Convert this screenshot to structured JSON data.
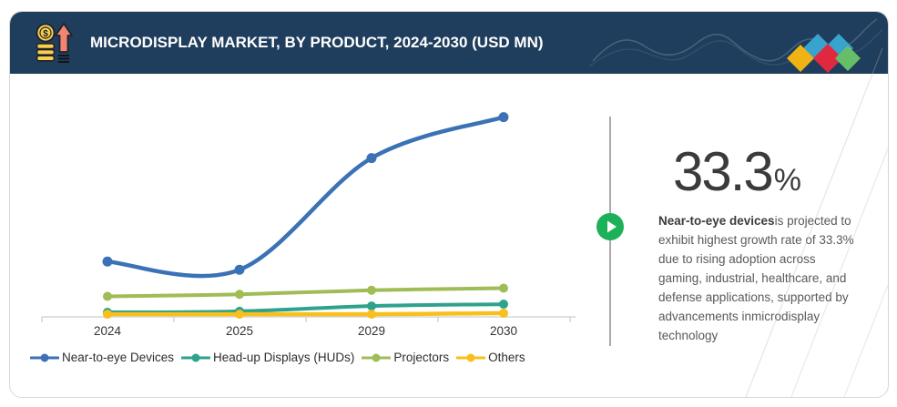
{
  "header": {
    "title": "MICRODISPLAY MARKET, BY PRODUCT, 2024-2030 (USD MN)",
    "background_color": "#1f3d5c",
    "icon_dollar": "$",
    "logo_diamond_colors": [
      "#38a3cc",
      "#38a3cc",
      "#efb313",
      "#e0293f",
      "#66bf68"
    ]
  },
  "chart_data": {
    "type": "line",
    "title": "MICRODISPLAY MARKET, BY PRODUCT, 2024-2030 (USD MN)",
    "categories": [
      "2024",
      "2025",
      "2029",
      "2030"
    ],
    "series": [
      {
        "name": "Near-to-eye Devices",
        "color": "#3a72b5",
        "values": [
          27,
          23,
          77.5,
          97.5
        ]
      },
      {
        "name": "Head-up Displays (HUDs)",
        "color": "#2fa28c",
        "values": [
          2.2,
          2.7,
          5.3,
          6.2
        ]
      },
      {
        "name": "Projectors",
        "color": "#9fbc55",
        "values": [
          10,
          11,
          13,
          14
        ]
      },
      {
        "name": "Others",
        "color": "#f8bf1d",
        "values": [
          1.3,
          1.3,
          1.3,
          1.8
        ]
      }
    ],
    "xlabel": "",
    "ylabel": "",
    "y_axis": {
      "visible": false,
      "note": "no y-axis scale shown; values estimated relative 0-100 from pixel positions",
      "range_used": [
        0,
        100
      ]
    },
    "grid": false,
    "legend_position": "bottom",
    "line_style": "smooth with point markers"
  },
  "highlight": {
    "value": "33.3",
    "percent_sign": "%",
    "bold_text": "Near-to-eye devices",
    "body_text": "is projected to exhibit highest growth rate of 33.3% due to rising adoption across gaming, industrial, healthcare, and defense applications, supported by advancements inmicrodisplay technology",
    "play_icon_color": "#1cb158"
  }
}
